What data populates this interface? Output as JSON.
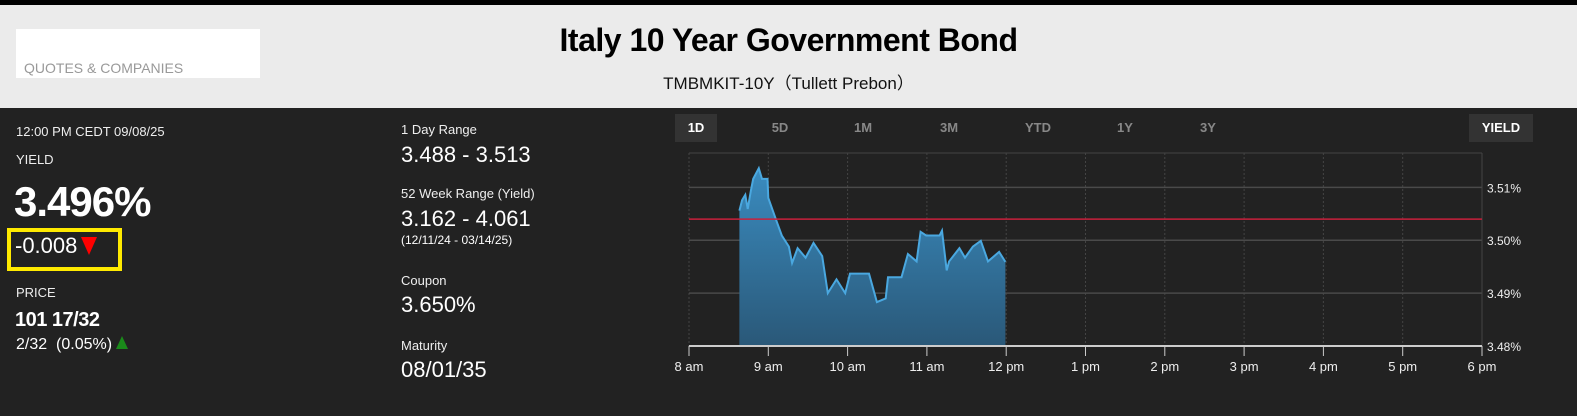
{
  "header": {
    "quotes_label": "QUOTES & COMPANIES",
    "title": "Italy 10 Year Government Bond",
    "subtitle": "TMBMKIT-10Y（Tullett Prebon）"
  },
  "quote": {
    "timestamp": "12:00 PM CEDT 09/08/25",
    "yield_label": "YIELD",
    "yield_value": "3.496%",
    "yield_change": "-0.008",
    "price_label": "PRICE",
    "price_value": "101 17/32",
    "price_change": "2/32  (0.05%)"
  },
  "stats": {
    "day_range_label": "1 Day Range",
    "day_range": "3.488 - 3.513",
    "week52_label": "52 Week Range (Yield)",
    "week52": "3.162 - 4.061",
    "week52_dates": "(12/11/24 - 03/14/25)",
    "coupon_label": "Coupon",
    "coupon": "3.650%",
    "maturity_label": "Maturity",
    "maturity": "08/01/35"
  },
  "tabs": [
    "1D",
    "5D",
    "1M",
    "3M",
    "YTD",
    "1Y",
    "3Y"
  ],
  "active_tab": "1D",
  "mode_button": "YIELD",
  "colors": {
    "line": "#4aa8e0",
    "prev_close": "#c8203c",
    "down": "#ff0000",
    "up": "#1a8a1a",
    "highlight": "#ffea00"
  },
  "chart_data": {
    "type": "area",
    "x_ticks": [
      "8 am",
      "9 am",
      "10 am",
      "11 am",
      "12 pm",
      "1 pm",
      "2 pm",
      "3 pm",
      "4 pm",
      "5 pm",
      "6 pm"
    ],
    "y_ticks": [
      "3.51%",
      "3.50%",
      "3.49%",
      "3.48%"
    ],
    "y_tick_values": [
      3.51,
      3.5,
      3.49,
      3.48
    ],
    "xlim": [
      8,
      18
    ],
    "ylim": [
      3.48,
      3.5165
    ],
    "previous_close": 3.504,
    "x": [
      8.635,
      8.67,
      8.71,
      8.74,
      8.78,
      8.81,
      8.88,
      8.92,
      8.99,
      9.0,
      9.1,
      9.17,
      9.26,
      9.3,
      9.37,
      9.47,
      9.57,
      9.68,
      9.75,
      9.86,
      9.97,
      10.03,
      10.27,
      10.37,
      10.48,
      10.51,
      10.68,
      10.76,
      10.87,
      10.92,
      10.99,
      11.16,
      11.19,
      11.25,
      11.28,
      11.41,
      11.48,
      11.58,
      11.68,
      11.77,
      11.91,
      11.99
    ],
    "y": [
      3.5056,
      3.5076,
      3.5086,
      3.5059,
      3.5094,
      3.5116,
      3.5136,
      3.5116,
      3.5116,
      3.508,
      3.5038,
      3.5009,
      3.4988,
      3.4957,
      3.4985,
      3.4967,
      3.4995,
      3.497,
      3.49,
      3.4926,
      3.49,
      3.4937,
      3.4937,
      3.4883,
      3.489,
      3.493,
      3.493,
      3.4974,
      3.496,
      3.5016,
      3.5009,
      3.5009,
      3.5018,
      3.4943,
      3.496,
      3.4985,
      3.4967,
      3.4988,
      3.4999,
      3.496,
      3.4978,
      3.4959
    ]
  }
}
